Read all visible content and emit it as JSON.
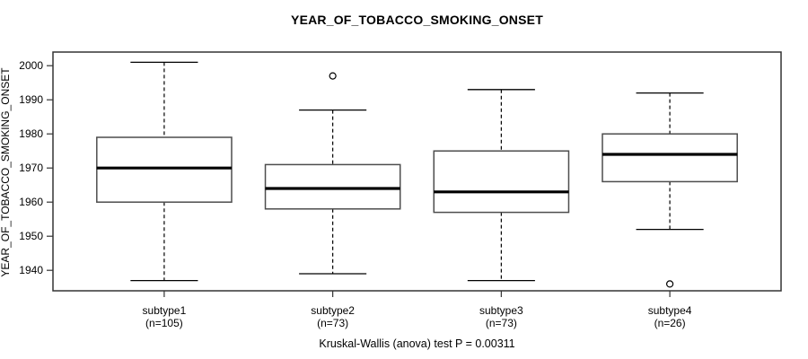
{
  "title": "YEAR_OF_TOBACCO_SMOKING_ONSET",
  "caption": "Kruskal-Wallis (anova) test P = 0.00311",
  "chart_data": {
    "type": "boxplot",
    "title": "YEAR_OF_TOBACCO_SMOKING_ONSET",
    "xlabel": "",
    "ylabel": "YEAR_OF_TOBACCO_SMOKING_ONSET",
    "ylim": [
      1934,
      2004
    ],
    "yticks": [
      1940,
      1950,
      1960,
      1970,
      1980,
      1990,
      2000
    ],
    "grid": false,
    "legend": "none",
    "annotation": "Kruskal-Wallis (anova) test P = 0.00311",
    "categories": [
      {
        "label": "subtype1",
        "sublabel": "(n=105)"
      },
      {
        "label": "subtype2",
        "sublabel": "(n=73)"
      },
      {
        "label": "subtype3",
        "sublabel": "(n=73)"
      },
      {
        "label": "subtype4",
        "sublabel": "(n=26)"
      }
    ],
    "series": [
      {
        "name": "subtype1",
        "n": 105,
        "whisker_low": 1937,
        "q1": 1960,
        "median": 1970,
        "q3": 1979,
        "whisker_high": 2001,
        "outliers": []
      },
      {
        "name": "subtype2",
        "n": 73,
        "whisker_low": 1939,
        "q1": 1958,
        "median": 1964,
        "q3": 1971,
        "whisker_high": 1987,
        "outliers": [
          1997
        ]
      },
      {
        "name": "subtype3",
        "n": 73,
        "whisker_low": 1937,
        "q1": 1957,
        "median": 1963,
        "q3": 1975,
        "whisker_high": 1993,
        "outliers": []
      },
      {
        "name": "subtype4",
        "n": 26,
        "whisker_low": 1952,
        "q1": 1966,
        "median": 1974,
        "q3": 1980,
        "whisker_high": 1992,
        "outliers": [
          1936
        ]
      }
    ],
    "colors": {
      "background": "#ffffff",
      "text": "#000000",
      "frame": "#333333",
      "box_border": "#4d4d4d",
      "box_fill": "#ffffff",
      "median": "#000000",
      "whisker": "#000000",
      "outlier": "#000000"
    }
  }
}
